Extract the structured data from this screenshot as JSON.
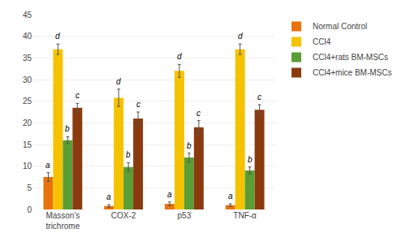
{
  "chart_data": {
    "type": "bar",
    "categories": [
      "Masson's\ntrichrome",
      "COX-2",
      "p53",
      "TNF-α"
    ],
    "series": [
      {
        "name": "Normal Control",
        "color": "#E8720C",
        "values": [
          7.5,
          0.8,
          1.3,
          1.0
        ],
        "errors": [
          1.0,
          0.3,
          0.4,
          0.3
        ],
        "letters": [
          "a",
          "a",
          "a",
          "a"
        ]
      },
      {
        "name": "CCl4",
        "color": "#F5C200",
        "values": [
          37.0,
          25.8,
          32.0,
          37.0
        ],
        "errors": [
          1.2,
          2.0,
          1.5,
          1.2
        ],
        "letters": [
          "d",
          "d",
          "d",
          "d"
        ]
      },
      {
        "name": "CCl4+rats BM-MSCs",
        "color": "#5A9E35",
        "values": [
          16.0,
          9.8,
          12.0,
          9.0
        ],
        "errors": [
          0.8,
          1.0,
          1.0,
          0.8
        ],
        "letters": [
          "b",
          "b",
          "b",
          "b"
        ]
      },
      {
        "name": "CCl4+mice BM-MSCs",
        "color": "#8B3A0F",
        "values": [
          23.5,
          21.0,
          19.0,
          23.0
        ],
        "errors": [
          1.0,
          1.5,
          1.5,
          1.2
        ],
        "letters": [
          "c",
          "c",
          "c",
          "c"
        ]
      }
    ],
    "ylim": [
      0,
      45
    ],
    "yticks": [
      0,
      5,
      10,
      15,
      20,
      25,
      30,
      35,
      40,
      45
    ],
    "grid": true,
    "legend": "upper right"
  }
}
